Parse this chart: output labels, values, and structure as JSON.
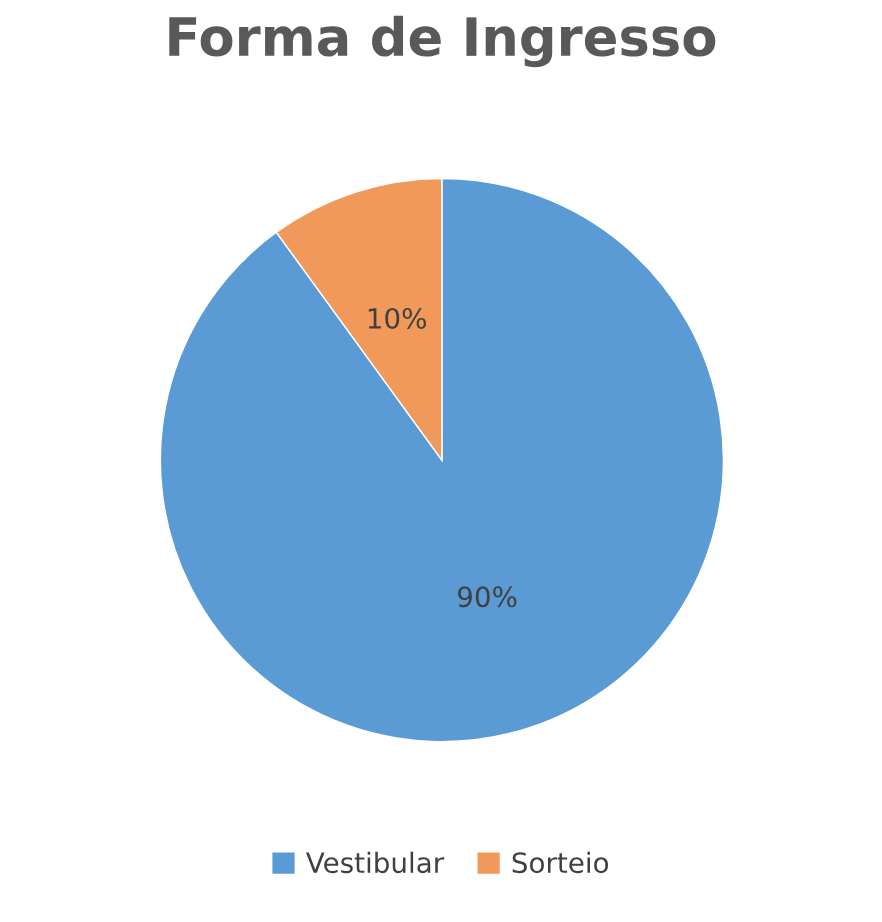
{
  "chart_data": {
    "type": "pie",
    "title": "Forma de Ingresso",
    "categories": [
      "Vestibular",
      "Sorteio"
    ],
    "values": [
      90,
      10
    ],
    "colors": [
      "#5b9bd5",
      "#f0995a"
    ],
    "value_labels": [
      "90%",
      "10%"
    ],
    "legend": "bottom"
  }
}
